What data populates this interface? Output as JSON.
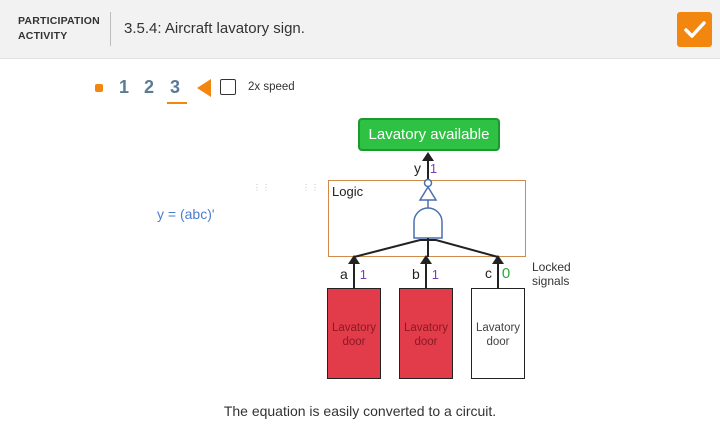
{
  "header": {
    "activity_type_line1": "PARTICIPATION",
    "activity_type_line2": "ACTIVITY",
    "title": "3.5.4: Aircraft lavatory sign.",
    "completion_icon": "checkmark-icon",
    "accent_color": "#f2860f"
  },
  "controls": {
    "steps": [
      "1",
      "2",
      "3"
    ],
    "current_step": "3",
    "play_icon": "play-back-triangle-icon",
    "speed_label": "2x speed",
    "speed_checked": false
  },
  "diagram": {
    "equation": "y = (abc)'",
    "output_label": "Lavatory available",
    "output_signal_name": "y",
    "output_signal_value": "1",
    "logic_label": "Logic",
    "inputs": [
      {
        "name": "a",
        "value": "1",
        "door_label": "Lavatory door",
        "door_color": "#e23c4a"
      },
      {
        "name": "b",
        "value": "1",
        "door_label": "Lavatory door",
        "door_color": "#e23c4a"
      },
      {
        "name": "c",
        "value": "0",
        "door_label": "Lavatory door",
        "door_color": "#ffffff"
      }
    ],
    "locked_note_line1": "Locked",
    "locked_note_line2": "signals",
    "available_color": "#2ec143",
    "value_color": "#7b3fb5",
    "zero_color": "#2ba63a"
  },
  "caption": "The equation is easily converted to a circuit."
}
